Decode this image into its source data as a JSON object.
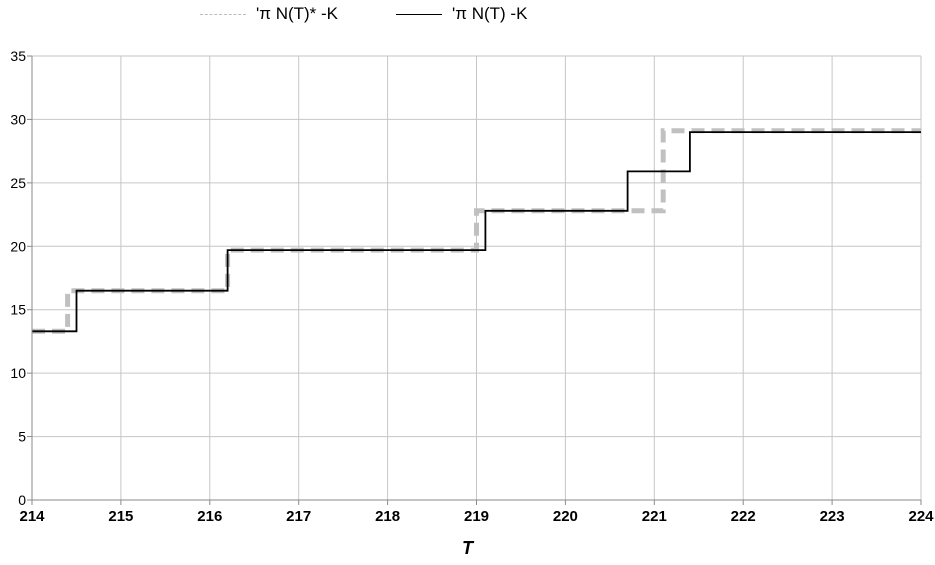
{
  "chart_data": {
    "type": "line",
    "xlabel": "T",
    "ylabel": "",
    "xlim": [
      214,
      224
    ],
    "ylim": [
      0,
      35
    ],
    "xticks": [
      "214",
      "215",
      "216",
      "217",
      "218",
      "219",
      "220",
      "221",
      "222",
      "223",
      "224"
    ],
    "yticks": [
      "0",
      "5",
      "10",
      "15",
      "20",
      "25",
      "30",
      "35"
    ],
    "grid": true,
    "legend_position": "top-center",
    "series": [
      {
        "name": "'π N(T)*  -K",
        "style": "dashed",
        "color": "#c0c0c0",
        "points": [
          [
            214.0,
            13.3
          ],
          [
            214.4,
            13.3
          ],
          [
            214.4,
            16.5
          ],
          [
            216.2,
            16.5
          ],
          [
            216.2,
            19.7
          ],
          [
            219.0,
            19.7
          ],
          [
            219.0,
            22.8
          ],
          [
            220.8,
            22.8
          ],
          [
            221.1,
            22.8
          ],
          [
            221.1,
            29.1
          ],
          [
            224.0,
            29.1
          ]
        ]
      },
      {
        "name": "'π N(T) -K",
        "style": "solid",
        "color": "#000000",
        "points": [
          [
            214.0,
            13.3
          ],
          [
            214.5,
            13.3
          ],
          [
            214.5,
            16.5
          ],
          [
            216.2,
            16.5
          ],
          [
            216.2,
            19.7
          ],
          [
            219.1,
            19.7
          ],
          [
            219.1,
            22.8
          ],
          [
            220.7,
            22.8
          ],
          [
            220.7,
            25.9
          ],
          [
            221.4,
            25.9
          ],
          [
            221.4,
            29.0
          ],
          [
            224.0,
            29.0
          ]
        ]
      }
    ]
  }
}
